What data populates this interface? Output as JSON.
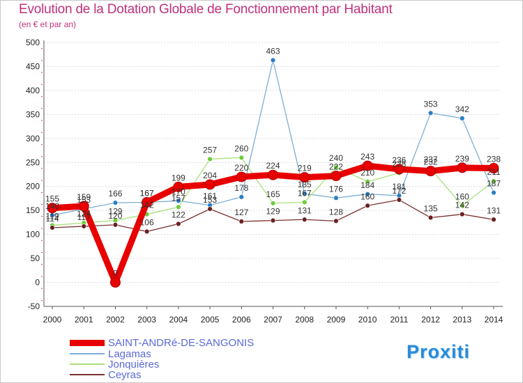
{
  "title": "Evolution de la Dotation Globale de Fonctionnement par Habitant",
  "subtitle": "(en € et par an)",
  "logo": "Proxiti",
  "chart_data": {
    "type": "line",
    "title": "Evolution de la Dotation Globale de Fonctionnement par Habitant",
    "subtitle": "(en € et par an)",
    "xlabel": "",
    "ylabel": "",
    "ylim": [
      -50,
      500
    ],
    "yticks": [
      -50,
      0,
      50,
      100,
      150,
      200,
      250,
      300,
      350,
      400,
      450,
      500
    ],
    "categories": [
      "2000",
      "2001",
      "2002",
      "2003",
      "2004",
      "2005",
      "2006",
      "2007",
      "2008",
      "2009",
      "2010",
      "2011",
      "2012",
      "2013",
      "2014"
    ],
    "grid": "horizontal",
    "legend_position": "bottom-left",
    "series": [
      {
        "name": "SAINT-ANDRé-DE-SANGONIS",
        "color": "#e80000",
        "marker_color": "#e80000",
        "values": [
          155,
          159,
          0,
          167,
          199,
          204,
          220,
          224,
          219,
          222,
          243,
          236,
          232,
          239,
          238
        ]
      },
      {
        "name": "Lagamas",
        "color": "#7aaed6",
        "marker_color": "#2a7ec6",
        "values": [
          140,
          153,
          166,
          167,
          170,
          161,
          178,
          463,
          185,
          176,
          184,
          181,
          353,
          342,
          187
        ]
      },
      {
        "name": "Jonquières",
        "color": "#a8e07a",
        "marker_color": "#6ccc3a",
        "values": [
          119,
          124,
          129,
          142,
          157,
          257,
          260,
          165,
          167,
          240,
          210,
          228,
          237,
          160,
          211
        ]
      },
      {
        "name": "Ceyras",
        "color": "#7a3030",
        "marker_color": "#6a2020",
        "values": [
          114,
          117,
          120,
          106,
          122,
          153,
          127,
          129,
          131,
          128,
          160,
          172,
          135,
          142,
          131
        ]
      }
    ]
  }
}
